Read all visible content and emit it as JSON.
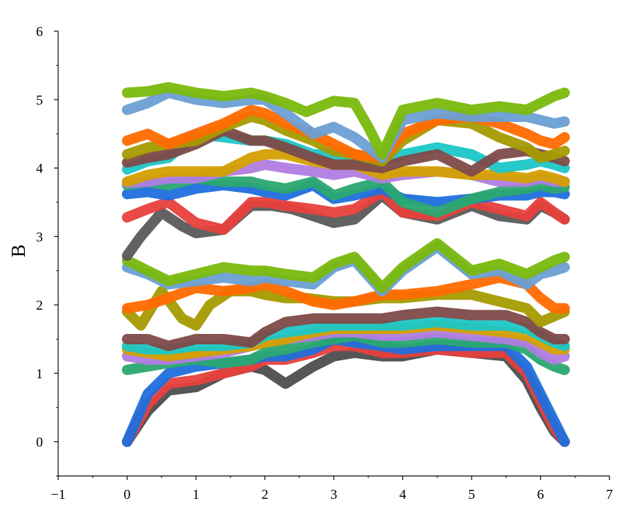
{
  "chart_data": {
    "type": "scatter",
    "title": "",
    "xlabel": "",
    "ylabel": "B",
    "xlim": [
      -1,
      7
    ],
    "ylim": [
      -0.5,
      6
    ],
    "xticks": [
      "−1",
      "0",
      "1",
      "2",
      "3",
      "4",
      "5",
      "6",
      "7"
    ],
    "yticks": [
      "0",
      "1",
      "2",
      "3",
      "4",
      "5",
      "6"
    ],
    "grid": false,
    "legend": "none",
    "series": [
      {
        "color": "#4d4d4d",
        "x": [
          0,
          0.3,
          0.6,
          1.0,
          1.4,
          1.8,
          2.0,
          2.3,
          2.7,
          3.0,
          3.3,
          3.7,
          4.0,
          4.5,
          5.0,
          5.5,
          5.8,
          6.0,
          6.2,
          6.35
        ],
        "y": [
          0,
          0.45,
          0.75,
          0.8,
          1.0,
          1.1,
          1.05,
          0.85,
          1.1,
          1.25,
          1.3,
          1.25,
          1.25,
          1.35,
          1.3,
          1.25,
          0.9,
          0.5,
          0.15,
          0
        ]
      },
      {
        "color": "#e8403c",
        "x": [
          0,
          0.3,
          0.6,
          1.0,
          1.4,
          1.8,
          2.0,
          2.3,
          2.7,
          3.0,
          3.3,
          3.7,
          4.0,
          4.5,
          5.0,
          5.5,
          5.8,
          6.0,
          6.2,
          6.35
        ],
        "y": [
          0,
          0.55,
          0.85,
          0.9,
          1.0,
          1.1,
          1.2,
          1.2,
          1.3,
          1.4,
          1.4,
          1.3,
          1.3,
          1.35,
          1.3,
          1.3,
          1.0,
          0.6,
          0.2,
          0
        ]
      },
      {
        "color": "#1f6fdc",
        "x": [
          0,
          0.3,
          0.6,
          1.0,
          1.4,
          1.8,
          2.0,
          2.3,
          2.7,
          3.0,
          3.3,
          3.7,
          4.0,
          4.5,
          5.0,
          5.5,
          5.8,
          6.0,
          6.2,
          6.35
        ],
        "y": [
          0,
          0.7,
          1.0,
          1.1,
          1.15,
          1.2,
          1.25,
          1.25,
          1.35,
          1.5,
          1.45,
          1.4,
          1.35,
          1.4,
          1.4,
          1.4,
          1.1,
          0.7,
          0.3,
          0
        ]
      },
      {
        "color": "#2aa870",
        "x": [
          0,
          0.3,
          0.6,
          1.0,
          1.4,
          1.8,
          2.0,
          2.3,
          2.7,
          3.0,
          3.3,
          3.7,
          4.0,
          4.5,
          5.0,
          5.5,
          5.8,
          6.0,
          6.2,
          6.35
        ],
        "y": [
          1.05,
          1.1,
          1.15,
          1.2,
          1.15,
          1.2,
          1.3,
          1.35,
          1.45,
          1.5,
          1.55,
          1.45,
          1.45,
          1.5,
          1.45,
          1.45,
          1.35,
          1.2,
          1.1,
          1.05
        ]
      },
      {
        "color": "#b07ce3",
        "x": [
          0,
          0.3,
          0.6,
          1.0,
          1.4,
          1.8,
          2.0,
          2.3,
          2.7,
          3.0,
          3.3,
          3.7,
          4.0,
          4.5,
          5.0,
          5.5,
          5.8,
          6.0,
          6.2,
          6.35
        ],
        "y": [
          1.25,
          1.2,
          1.2,
          1.25,
          1.3,
          1.4,
          1.45,
          1.5,
          1.55,
          1.6,
          1.6,
          1.55,
          1.55,
          1.6,
          1.55,
          1.5,
          1.45,
          1.3,
          1.2,
          1.25
        ]
      },
      {
        "color": "#d4a000",
        "x": [
          0,
          0.3,
          0.6,
          1.0,
          1.4,
          1.8,
          2.0,
          2.3,
          2.7,
          3.0,
          3.3,
          3.7,
          4.0,
          4.5,
          5.0,
          5.5,
          5.8,
          6.0,
          6.2,
          6.35
        ],
        "y": [
          1.35,
          1.3,
          1.25,
          1.3,
          1.35,
          1.4,
          1.45,
          1.5,
          1.6,
          1.65,
          1.65,
          1.65,
          1.65,
          1.7,
          1.65,
          1.6,
          1.55,
          1.45,
          1.35,
          1.35
        ]
      },
      {
        "color": "#1cc6c6",
        "x": [
          0,
          0.3,
          0.6,
          1.0,
          1.4,
          1.8,
          2.0,
          2.3,
          2.7,
          3.0,
          3.3,
          3.7,
          4.0,
          4.5,
          5.0,
          5.5,
          5.8,
          6.0,
          6.2,
          6.35
        ],
        "y": [
          1.4,
          1.35,
          1.35,
          1.4,
          1.4,
          1.45,
          1.55,
          1.6,
          1.65,
          1.7,
          1.7,
          1.7,
          1.7,
          1.75,
          1.7,
          1.7,
          1.65,
          1.55,
          1.45,
          1.4
        ]
      },
      {
        "color": "#7e4a48",
        "x": [
          0,
          0.3,
          0.6,
          1.0,
          1.4,
          1.8,
          2.0,
          2.3,
          2.7,
          3.0,
          3.3,
          3.7,
          4.0,
          4.5,
          5.0,
          5.5,
          5.8,
          6.0,
          6.2,
          6.35
        ],
        "y": [
          1.5,
          1.5,
          1.4,
          1.5,
          1.5,
          1.45,
          1.6,
          1.75,
          1.8,
          1.8,
          1.8,
          1.8,
          1.85,
          1.9,
          1.85,
          1.85,
          1.75,
          1.6,
          1.5,
          1.5
        ]
      },
      {
        "color": "#a59a00",
        "x": [
          0,
          0.2,
          0.5,
          0.8,
          1.0,
          1.2,
          1.5,
          1.8,
          2.0,
          2.3,
          2.6,
          3.0,
          3.3,
          3.7,
          4.0,
          4.5,
          5.0,
          5.4,
          5.8,
          6.0,
          6.35
        ],
        "y": [
          1.9,
          1.7,
          2.2,
          1.8,
          1.7,
          2.0,
          2.2,
          2.2,
          2.15,
          2.1,
          2.1,
          2.05,
          2.05,
          2.1,
          2.1,
          2.15,
          2.15,
          2.05,
          1.95,
          1.75,
          1.9
        ]
      },
      {
        "color": "#ff6a00",
        "x": [
          0,
          0.3,
          0.6,
          1.0,
          1.4,
          1.8,
          2.0,
          2.3,
          2.7,
          3.0,
          3.3,
          3.7,
          4.0,
          4.5,
          5.0,
          5.4,
          5.8,
          6.0,
          6.2,
          6.35
        ],
        "y": [
          1.95,
          2.0,
          2.1,
          2.25,
          2.2,
          2.25,
          2.3,
          2.2,
          2.05,
          2.0,
          2.05,
          2.15,
          2.15,
          2.2,
          2.3,
          2.4,
          2.3,
          2.1,
          1.95,
          1.95
        ]
      },
      {
        "color": "#6a9fd4",
        "x": [
          0,
          0.3,
          0.6,
          1.0,
          1.4,
          1.8,
          2.0,
          2.3,
          2.7,
          3.0,
          3.3,
          3.7,
          4.0,
          4.5,
          5.0,
          5.4,
          5.8,
          6.0,
          6.2,
          6.35
        ],
        "y": [
          2.55,
          2.45,
          2.3,
          2.35,
          2.4,
          2.35,
          2.4,
          2.35,
          2.3,
          2.55,
          2.65,
          2.2,
          2.5,
          2.85,
          2.45,
          2.5,
          2.3,
          2.45,
          2.5,
          2.55
        ]
      },
      {
        "color": "#79b90c",
        "x": [
          0,
          0.3,
          0.6,
          1.0,
          1.4,
          1.8,
          2.0,
          2.3,
          2.7,
          3.0,
          3.3,
          3.7,
          4.0,
          4.5,
          5.0,
          5.4,
          5.8,
          6.0,
          6.2,
          6.35
        ],
        "y": [
          2.65,
          2.5,
          2.35,
          2.45,
          2.55,
          2.5,
          2.5,
          2.45,
          2.4,
          2.6,
          2.7,
          2.25,
          2.55,
          2.9,
          2.5,
          2.6,
          2.45,
          2.55,
          2.65,
          2.7
        ]
      },
      {
        "color": "#5a5a5a",
        "x": [
          0,
          0.2,
          0.5,
          0.8,
          1.0,
          1.4,
          1.8,
          2.1,
          2.4,
          2.7,
          3.0,
          3.3,
          3.7,
          4.0,
          4.5,
          5.0,
          5.4,
          5.8,
          6.0,
          6.2,
          6.35
        ],
        "y": [
          2.72,
          3.0,
          3.35,
          3.15,
          3.05,
          3.1,
          3.45,
          3.45,
          3.4,
          3.3,
          3.2,
          3.25,
          3.6,
          3.35,
          3.25,
          3.45,
          3.3,
          3.25,
          3.45,
          3.35,
          3.25
        ]
      },
      {
        "color": "#e8403c",
        "x": [
          0,
          0.3,
          0.6,
          1.0,
          1.4,
          1.8,
          2.0,
          2.3,
          2.7,
          3.0,
          3.3,
          3.7,
          4.0,
          4.5,
          5.0,
          5.4,
          5.8,
          6.0,
          6.2,
          6.35
        ],
        "y": [
          3.28,
          3.4,
          3.5,
          3.2,
          3.1,
          3.5,
          3.5,
          3.45,
          3.4,
          3.35,
          3.4,
          3.65,
          3.35,
          3.3,
          3.5,
          3.4,
          3.3,
          3.5,
          3.35,
          3.25
        ]
      },
      {
        "color": "#1f6fdc",
        "x": [
          0,
          0.3,
          0.6,
          1.0,
          1.4,
          1.8,
          2.0,
          2.3,
          2.7,
          3.0,
          3.3,
          3.7,
          4.0,
          4.5,
          5.0,
          5.4,
          5.8,
          6.0,
          6.2,
          6.35
        ],
        "y": [
          3.62,
          3.65,
          3.6,
          3.7,
          3.75,
          3.7,
          3.65,
          3.6,
          3.75,
          3.55,
          3.6,
          3.7,
          3.55,
          3.5,
          3.55,
          3.6,
          3.6,
          3.65,
          3.65,
          3.62
        ]
      },
      {
        "color": "#2aa870",
        "x": [
          0,
          0.3,
          0.6,
          1.0,
          1.4,
          1.8,
          2.0,
          2.3,
          2.7,
          3.0,
          3.3,
          3.7,
          4.0,
          4.5,
          5.0,
          5.4,
          5.8,
          6.0,
          6.2,
          6.35
        ],
        "y": [
          3.75,
          3.8,
          3.75,
          3.85,
          3.8,
          3.8,
          3.75,
          3.7,
          3.8,
          3.6,
          3.7,
          3.8,
          3.5,
          3.35,
          3.55,
          3.65,
          3.7,
          3.75,
          3.7,
          3.72
        ]
      },
      {
        "color": "#b07ce3",
        "x": [
          0,
          0.3,
          0.6,
          1.0,
          1.4,
          1.8,
          2.0,
          2.3,
          2.7,
          3.0,
          3.3,
          3.7,
          4.0,
          4.5,
          5.0,
          5.4,
          5.8,
          6.0,
          6.2,
          6.35
        ],
        "y": [
          3.78,
          3.8,
          3.85,
          3.85,
          3.95,
          4.0,
          4.05,
          4.0,
          3.95,
          3.9,
          3.95,
          3.85,
          3.9,
          3.95,
          3.9,
          3.8,
          3.8,
          3.85,
          3.8,
          3.8
        ]
      },
      {
        "color": "#d4a000",
        "x": [
          0,
          0.3,
          0.6,
          1.0,
          1.4,
          1.8,
          2.0,
          2.3,
          2.7,
          3.0,
          3.3,
          3.7,
          4.0,
          4.5,
          5.0,
          5.4,
          5.8,
          6.0,
          6.2,
          6.35
        ],
        "y": [
          3.8,
          3.9,
          3.95,
          3.95,
          3.95,
          4.15,
          4.2,
          4.2,
          4.1,
          4.05,
          4.05,
          3.9,
          3.95,
          3.95,
          3.9,
          3.9,
          3.85,
          3.9,
          3.85,
          3.8
        ]
      },
      {
        "color": "#1cc6c6",
        "x": [
          0,
          0.3,
          0.6,
          1.0,
          1.4,
          1.8,
          2.0,
          2.3,
          2.7,
          3.0,
          3.3,
          3.7,
          4.0,
          4.5,
          5.0,
          5.4,
          5.8,
          6.0,
          6.2,
          6.35
        ],
        "y": [
          3.98,
          4.1,
          4.15,
          4.5,
          4.45,
          4.4,
          4.4,
          4.35,
          4.2,
          4.2,
          4.15,
          4.1,
          4.2,
          4.3,
          4.2,
          4.0,
          4.05,
          4.1,
          4.05,
          4.0
        ]
      },
      {
        "color": "#7e4a48",
        "x": [
          0,
          0.3,
          0.6,
          1.0,
          1.4,
          1.8,
          2.0,
          2.3,
          2.7,
          3.0,
          3.3,
          3.7,
          4.0,
          4.5,
          5.0,
          5.4,
          5.8,
          6.0,
          6.2,
          6.35
        ],
        "y": [
          4.08,
          4.15,
          4.2,
          4.35,
          4.55,
          4.4,
          4.4,
          4.3,
          4.15,
          4.05,
          4.05,
          4.0,
          4.1,
          4.2,
          3.95,
          4.2,
          4.25,
          4.2,
          4.15,
          4.1
        ]
      },
      {
        "color": "#a59a00",
        "x": [
          0,
          0.3,
          0.6,
          1.0,
          1.4,
          1.8,
          2.0,
          2.3,
          2.7,
          3.0,
          3.3,
          3.7,
          4.0,
          4.5,
          5.0,
          5.4,
          5.8,
          6.0,
          6.2,
          6.35
        ],
        "y": [
          4.2,
          4.3,
          4.35,
          4.4,
          4.6,
          4.75,
          4.7,
          4.55,
          4.4,
          4.25,
          4.2,
          4.1,
          4.4,
          4.7,
          4.65,
          4.45,
          4.3,
          4.15,
          4.2,
          4.25
        ]
      },
      {
        "color": "#ff6a00",
        "x": [
          0,
          0.3,
          0.6,
          1.0,
          1.4,
          1.8,
          2.0,
          2.3,
          2.7,
          3.0,
          3.3,
          3.7,
          4.0,
          4.5,
          5.0,
          5.4,
          5.8,
          6.0,
          6.2,
          6.35
        ],
        "y": [
          4.4,
          4.5,
          4.35,
          4.5,
          4.65,
          4.85,
          4.8,
          4.65,
          4.5,
          4.35,
          4.2,
          4.15,
          4.5,
          4.7,
          4.75,
          4.65,
          4.5,
          4.4,
          4.35,
          4.45
        ]
      },
      {
        "color": "#6a9fd4",
        "x": [
          0,
          0.3,
          0.6,
          1.0,
          1.4,
          1.8,
          2.0,
          2.3,
          2.7,
          3.0,
          3.3,
          3.7,
          4.0,
          4.5,
          5.0,
          5.4,
          5.8,
          6.0,
          6.2,
          6.35
        ],
        "y": [
          4.85,
          4.95,
          5.1,
          5.0,
          4.95,
          5.0,
          5.0,
          4.8,
          4.5,
          4.6,
          4.45,
          4.15,
          4.7,
          4.8,
          4.75,
          4.75,
          4.75,
          4.7,
          4.65,
          4.68
        ]
      },
      {
        "color": "#79b90c",
        "x": [
          0,
          0.3,
          0.6,
          1.0,
          1.4,
          1.8,
          2.0,
          2.3,
          2.6,
          3.0,
          3.3,
          3.5,
          3.7,
          4.0,
          4.5,
          5.0,
          5.4,
          5.8,
          6.0,
          6.2,
          6.35
        ],
        "y": [
          5.1,
          5.12,
          5.18,
          5.1,
          5.05,
          5.1,
          5.05,
          4.95,
          4.82,
          4.98,
          4.95,
          4.6,
          4.2,
          4.85,
          4.95,
          4.85,
          4.9,
          4.85,
          4.95,
          5.05,
          5.1
        ]
      }
    ]
  }
}
